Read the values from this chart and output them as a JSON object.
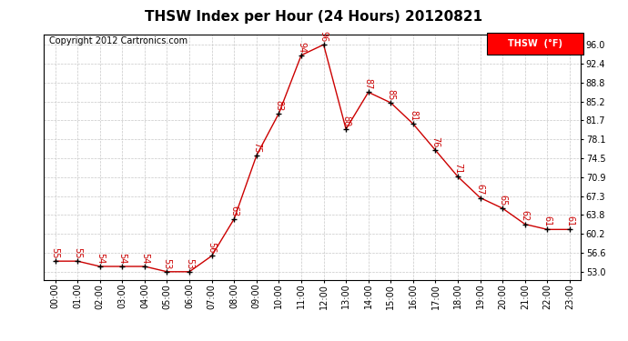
{
  "title": "THSW Index per Hour (24 Hours) 20120821",
  "copyright": "Copyright 2012 Cartronics.com",
  "legend_label": "THSW  (°F)",
  "hours": [
    0,
    1,
    2,
    3,
    4,
    5,
    6,
    7,
    8,
    9,
    10,
    11,
    12,
    13,
    14,
    15,
    16,
    17,
    18,
    19,
    20,
    21,
    22,
    23
  ],
  "values": [
    55,
    55,
    54,
    54,
    54,
    53,
    53,
    56,
    63,
    75,
    83,
    94,
    96,
    80,
    87,
    85,
    81,
    76,
    71,
    67,
    65,
    62,
    61,
    61
  ],
  "yticks": [
    53.0,
    56.6,
    60.2,
    63.8,
    67.3,
    70.9,
    74.5,
    78.1,
    81.7,
    85.2,
    88.8,
    92.4,
    96.0
  ],
  "ylim": [
    51.5,
    98.0
  ],
  "xlim": [
    -0.5,
    23.5
  ],
  "line_color": "#cc0000",
  "marker_color": "#000000",
  "label_color": "#cc0000",
  "bg_color": "#ffffff",
  "grid_color": "#c8c8c8",
  "title_fontsize": 11,
  "tick_fontsize": 7,
  "label_fontsize": 7,
  "copyright_fontsize": 7,
  "legend_fontsize": 7
}
